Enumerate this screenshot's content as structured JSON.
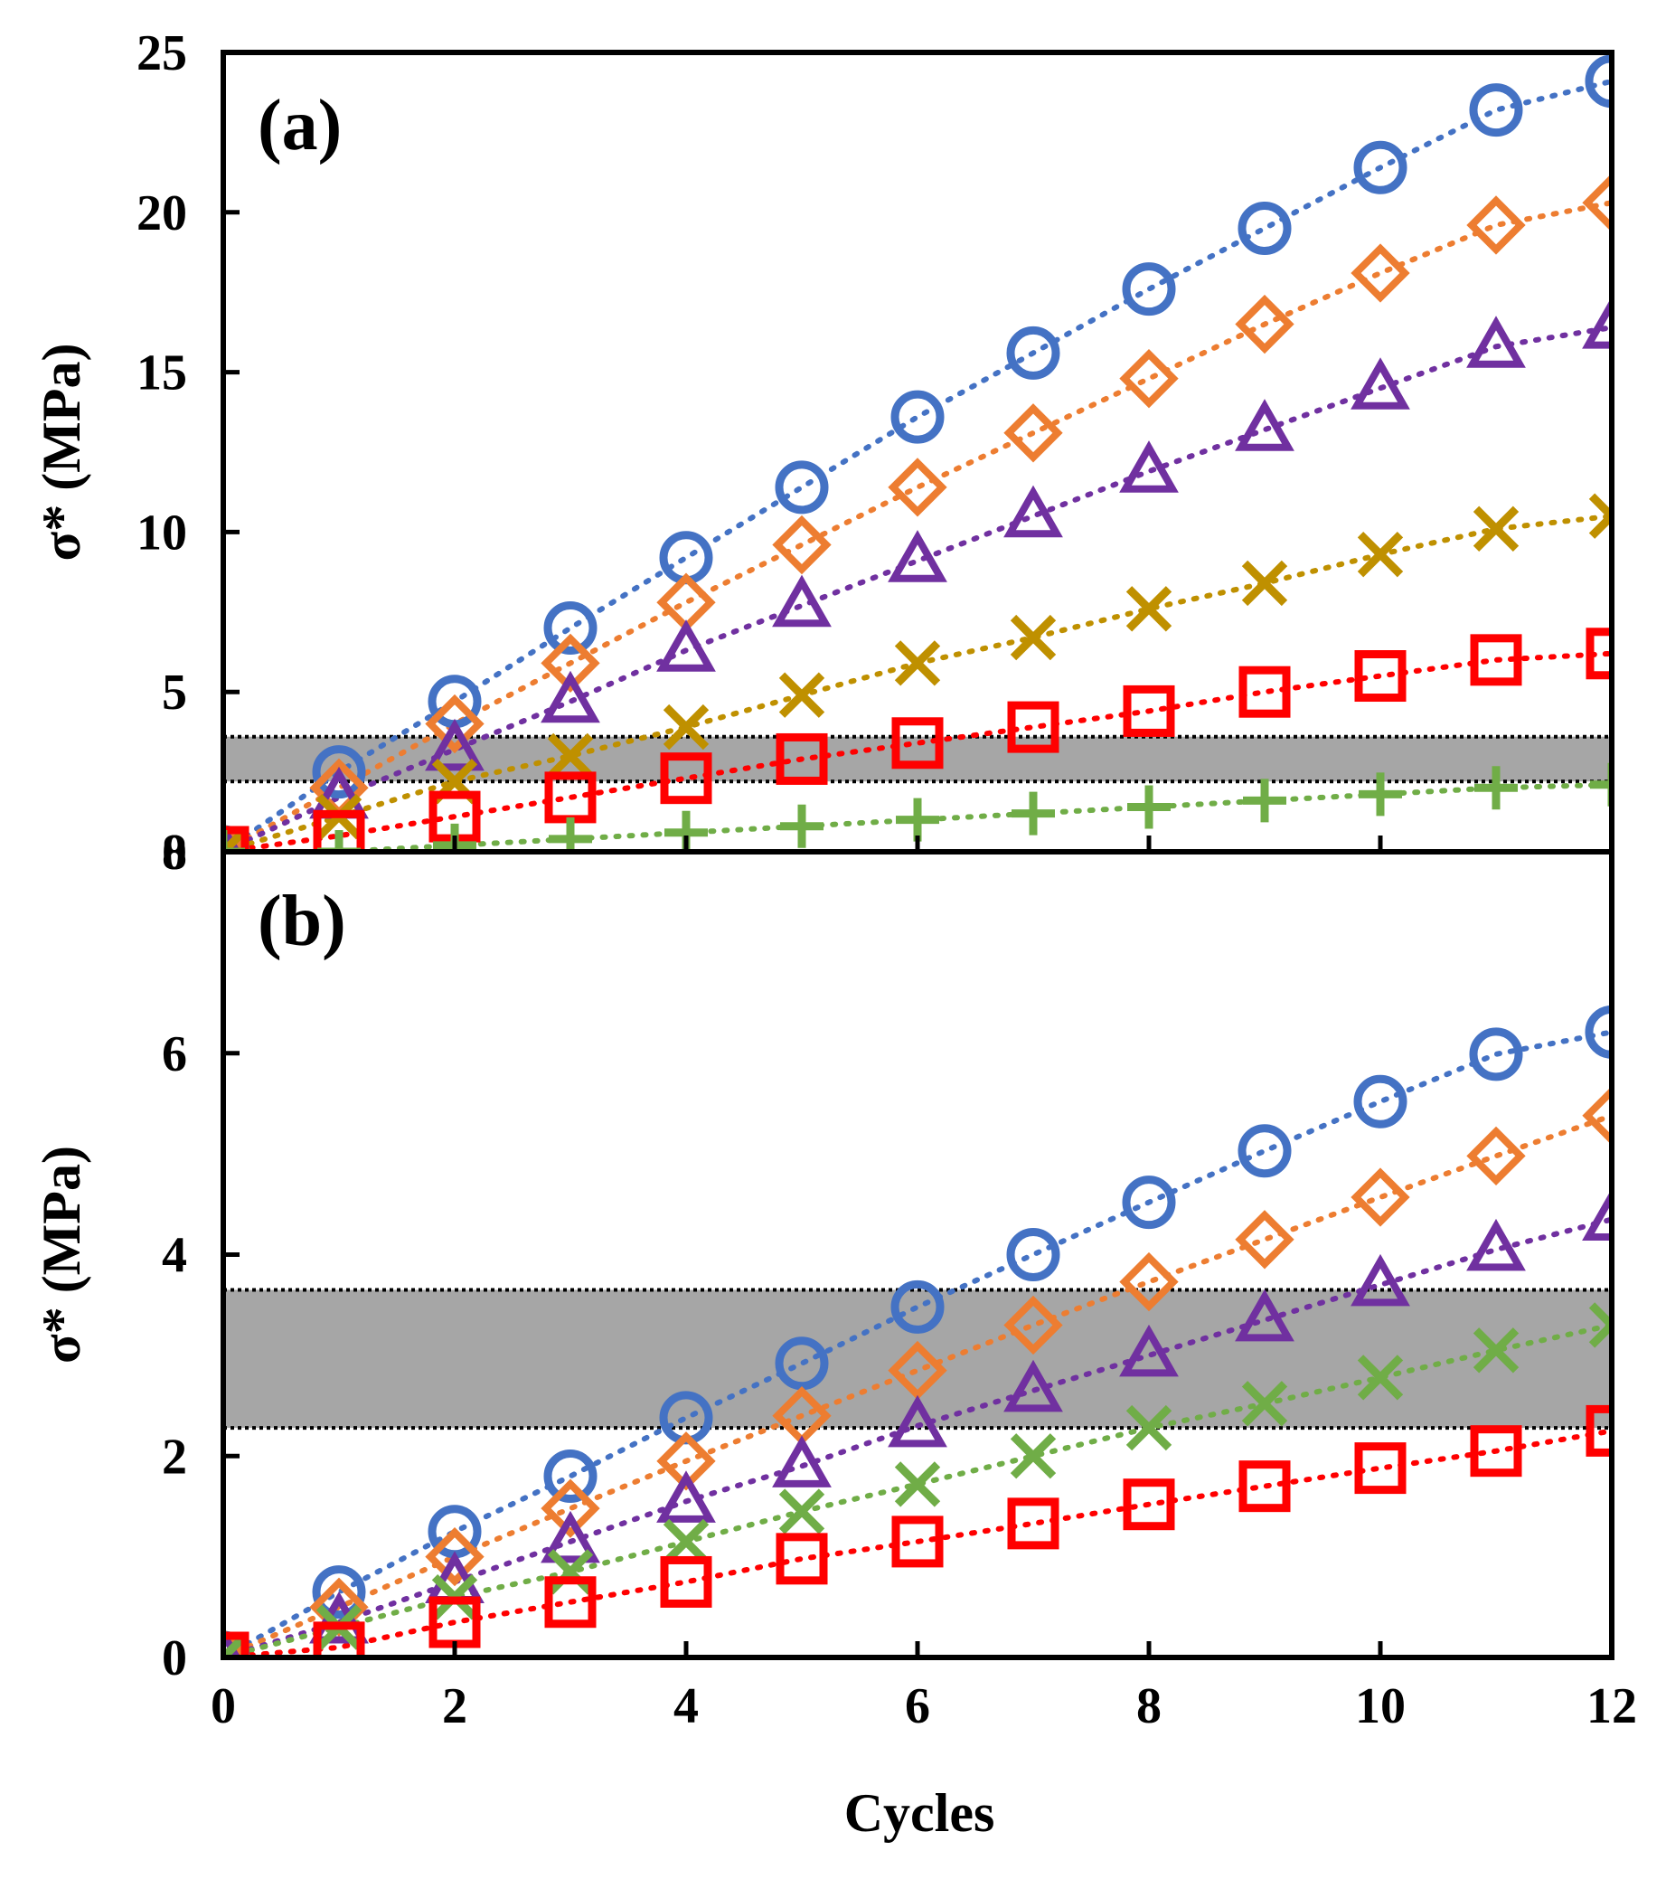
{
  "colors": {
    "blue": "#4472C4",
    "orange": "#ED7D31",
    "purple": "#7030A0",
    "gold": "#BF9000",
    "red": "#FF0000",
    "green": "#70AD47",
    "band": "#A6A6A6"
  },
  "chart_data": [
    {
      "type": "line",
      "panel_label": "(a)",
      "title": "",
      "xlabel": "",
      "ylabel": "σ* (MPa)",
      "xlim": [
        0,
        12
      ],
      "ylim": [
        0,
        25
      ],
      "xticks": [
        0,
        2,
        4,
        6,
        8,
        10,
        12
      ],
      "yticks": [
        0,
        5,
        10,
        15,
        20,
        25
      ],
      "show_x_tick_labels": false,
      "grid": false,
      "band": {
        "y0": 2.2,
        "y1": 3.6
      },
      "x": [
        0,
        1,
        2,
        3,
        4,
        5,
        6,
        7,
        8,
        9,
        10,
        11,
        12
      ],
      "series": [
        {
          "name": "circle-series",
          "marker": "circle",
          "color": "#4472C4",
          "values": [
            0,
            2.5,
            4.7,
            7.0,
            9.2,
            11.4,
            13.6,
            15.6,
            17.6,
            19.5,
            21.4,
            23.2,
            24.1
          ]
        },
        {
          "name": "diamond-series",
          "marker": "diamond",
          "color": "#ED7D31",
          "values": [
            0,
            2.0,
            4.0,
            5.9,
            7.8,
            9.6,
            11.4,
            13.1,
            14.8,
            16.5,
            18.1,
            19.6,
            20.3
          ]
        },
        {
          "name": "triangle-series",
          "marker": "triangle",
          "color": "#7030A0",
          "values": [
            0,
            1.7,
            3.2,
            4.7,
            6.3,
            7.7,
            9.1,
            10.5,
            11.9,
            13.2,
            14.5,
            15.8,
            16.4
          ]
        },
        {
          "name": "x-series",
          "marker": "x",
          "color": "#BF9000",
          "values": [
            0,
            1.1,
            2.2,
            3.0,
            3.9,
            4.9,
            5.9,
            6.7,
            7.6,
            8.4,
            9.3,
            10.1,
            10.5
          ]
        },
        {
          "name": "square-series",
          "marker": "square",
          "color": "#FF0000",
          "values": [
            0,
            0.5,
            1.1,
            1.7,
            2.3,
            2.9,
            3.4,
            3.9,
            4.4,
            5.0,
            5.5,
            6.0,
            6.2
          ]
        },
        {
          "name": "plus-series",
          "marker": "plus",
          "color": "#70AD47",
          "values": [
            0,
            0.0,
            0.2,
            0.4,
            0.6,
            0.8,
            1.0,
            1.2,
            1.4,
            1.6,
            1.8,
            2.0,
            2.1
          ]
        }
      ]
    },
    {
      "type": "line",
      "panel_label": "(b)",
      "title": "",
      "xlabel": "Cycles",
      "ylabel": "σ* (MPa)",
      "xlim": [
        0,
        12
      ],
      "ylim": [
        0,
        8
      ],
      "xticks": [
        0,
        2,
        4,
        6,
        8,
        10,
        12
      ],
      "yticks": [
        0,
        2,
        4,
        6,
        8
      ],
      "show_x_tick_labels": true,
      "grid": false,
      "band": {
        "y0": 2.28,
        "y1": 3.65
      },
      "x": [
        0,
        1,
        2,
        3,
        4,
        5,
        6,
        7,
        8,
        9,
        10,
        11,
        12
      ],
      "series": [
        {
          "name": "circle-series",
          "marker": "circle",
          "color": "#4472C4",
          "values": [
            0,
            0.65,
            1.25,
            1.8,
            2.38,
            2.92,
            3.48,
            4.0,
            4.52,
            5.03,
            5.52,
            5.99,
            6.21
          ]
        },
        {
          "name": "diamond-series",
          "marker": "diamond",
          "color": "#ED7D31",
          "values": [
            0,
            0.5,
            1.0,
            1.48,
            1.95,
            2.4,
            2.85,
            3.3,
            3.73,
            4.15,
            4.57,
            4.98,
            5.38
          ]
        },
        {
          "name": "triangle-series",
          "marker": "triangle",
          "color": "#7030A0",
          "values": [
            0,
            0.35,
            0.75,
            1.15,
            1.55,
            1.9,
            2.3,
            2.65,
            3.0,
            3.35,
            3.7,
            4.05,
            4.35
          ]
        },
        {
          "name": "x-series",
          "marker": "x",
          "color": "#70AD47",
          "values": [
            0,
            0.3,
            0.6,
            0.85,
            1.15,
            1.45,
            1.72,
            2.0,
            2.28,
            2.52,
            2.78,
            3.05,
            3.3
          ]
        },
        {
          "name": "square-series",
          "marker": "square",
          "color": "#FF0000",
          "values": [
            0,
            0.1,
            0.35,
            0.55,
            0.75,
            0.98,
            1.15,
            1.33,
            1.52,
            1.7,
            1.88,
            2.05,
            2.25
          ]
        }
      ]
    }
  ]
}
